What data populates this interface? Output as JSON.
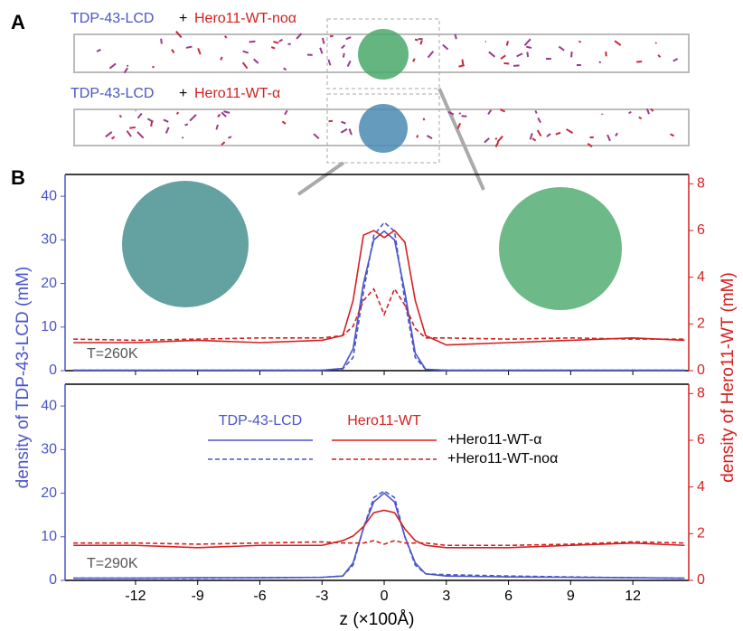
{
  "panel_a": {
    "label": "A",
    "rows": [
      {
        "protein": "TDP-43-LCD",
        "plus": "+",
        "partner": "Hero11-WT-noα"
      },
      {
        "protein": "TDP-43-LCD",
        "plus": "+",
        "partner": "Hero11-WT-α"
      }
    ]
  },
  "panel_b": {
    "label": "B"
  },
  "chart_data": [
    {
      "type": "line",
      "annotation": "T=260K",
      "ylabel": "density of TDP-43-LCD (mM)",
      "y2label": "density of Hero11-WT (mM)",
      "x": [
        -15,
        -12,
        -9,
        -6,
        -3,
        -2,
        -1.5,
        -1,
        -0.5,
        0,
        0.5,
        1,
        1.5,
        2,
        3,
        6,
        9,
        12,
        14.5
      ],
      "xlim": [
        -15.4,
        14.7
      ],
      "xticks": [
        -12,
        -9,
        -6,
        -3,
        0,
        3,
        6,
        9,
        12
      ],
      "ylim": [
        0,
        45
      ],
      "yticks": [
        0,
        10,
        20,
        30,
        40
      ],
      "y2lim": [
        0,
        8.4
      ],
      "y2ticks": [
        0,
        2,
        4,
        6,
        8
      ],
      "series": [
        {
          "color": "#4a55c8",
          "dashed": false,
          "values": [
            0.1,
            0.1,
            0.1,
            0.1,
            0.1,
            0.5,
            5,
            20,
            30,
            32,
            30,
            18,
            4,
            0.3,
            0.1,
            0.1,
            0.1,
            0.1,
            0.1
          ]
        },
        {
          "color": "#4a55c8",
          "dashed": true,
          "values": [
            0.1,
            0.1,
            0.1,
            0.1,
            0.1,
            0.4,
            3,
            18,
            31,
            34,
            32,
            16,
            3,
            0.3,
            0.1,
            0.1,
            0.1,
            0.1,
            0.1
          ]
        },
        {
          "color": "#d42020",
          "dashed": false,
          "axis": "y2",
          "values": [
            1.2,
            1.2,
            1.3,
            1.2,
            1.3,
            1.5,
            3,
            5.8,
            6.0,
            5.7,
            6.0,
            5.5,
            3,
            1.5,
            1.1,
            1.2,
            1.3,
            1.4,
            1.3
          ]
        },
        {
          "color": "#d42020",
          "dashed": true,
          "axis": "y2",
          "values": [
            1.35,
            1.3,
            1.35,
            1.4,
            1.4,
            1.5,
            1.9,
            3,
            3.5,
            2.4,
            3.5,
            2.8,
            1.8,
            1.4,
            1.4,
            1.35,
            1.4,
            1.35,
            1.35
          ]
        }
      ]
    },
    {
      "type": "line",
      "annotation": "T=290K",
      "xlabel": "z (×100Å)",
      "x": [
        -15,
        -12,
        -9,
        -6,
        -3,
        -2,
        -1.5,
        -1,
        -0.5,
        0,
        0.5,
        1,
        1.5,
        2,
        3,
        6,
        9,
        12,
        14.5
      ],
      "xlim": [
        -15.4,
        14.7
      ],
      "xticks": [
        -12,
        -9,
        -6,
        -3,
        0,
        3,
        6,
        9,
        12
      ],
      "ylim": [
        0,
        45
      ],
      "yticks": [
        0,
        10,
        20,
        30,
        40
      ],
      "y2lim": [
        0,
        8.4
      ],
      "y2ticks": [
        0,
        2,
        4,
        6,
        8
      ],
      "legend": {
        "columns": [
          "TDP-43-LCD",
          "Hero11-WT"
        ],
        "rows": [
          "+Hero11-WT-α",
          "+Hero11-WT-noα"
        ]
      },
      "series": [
        {
          "color": "#4a55c8",
          "dashed": false,
          "values": [
            0.5,
            0.5,
            0.6,
            0.6,
            0.7,
            1,
            4,
            12,
            18,
            20,
            18,
            10,
            4,
            1.5,
            1,
            0.8,
            0.7,
            0.6,
            0.5
          ]
        },
        {
          "color": "#4a55c8",
          "dashed": true,
          "values": [
            0.5,
            0.5,
            0.5,
            0.6,
            0.7,
            1,
            3.5,
            12,
            19,
            20.5,
            19,
            10,
            3.5,
            1.5,
            1.3,
            1,
            0.8,
            0.6,
            0.5
          ]
        },
        {
          "color": "#d42020",
          "dashed": false,
          "axis": "y2",
          "values": [
            1.5,
            1.5,
            1.4,
            1.5,
            1.5,
            1.7,
            1.9,
            2.3,
            2.9,
            3.0,
            2.9,
            2.2,
            1.7,
            1.5,
            1.4,
            1.4,
            1.5,
            1.6,
            1.5
          ]
        },
        {
          "color": "#d42020",
          "dashed": true,
          "axis": "y2",
          "values": [
            1.6,
            1.6,
            1.55,
            1.6,
            1.65,
            1.6,
            1.6,
            1.6,
            1.7,
            1.55,
            1.7,
            1.6,
            1.6,
            1.6,
            1.5,
            1.5,
            1.55,
            1.65,
            1.6
          ]
        }
      ]
    }
  ]
}
